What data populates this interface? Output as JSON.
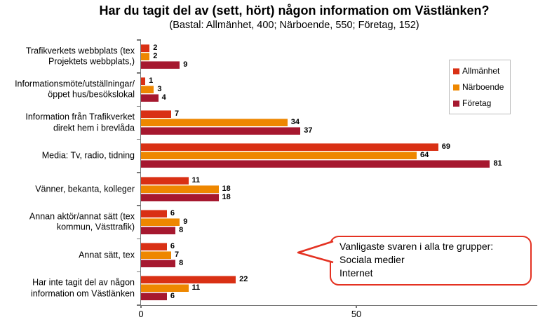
{
  "title": "Har du tagit del av (sett, hört) någon information om Västlänken?",
  "subtitle": "(Bastal: Allmänhet, 400; Närboende, 550; Företag, 152)",
  "colors": {
    "allmanhet": "#D93014",
    "narboende": "#EE8700",
    "foretag": "#A6182F",
    "axis": "#767676",
    "legend_border": "#BDBDBD",
    "callout_border": "#E43222"
  },
  "legend": {
    "items": [
      {
        "label": "Allmänhet",
        "color": "#D93014"
      },
      {
        "label": "Närboende",
        "color": "#EE8700"
      },
      {
        "label": "Företag",
        "color": "#A6182F"
      }
    ]
  },
  "callout": {
    "lines": [
      "Vanligaste svaren i alla tre grupper:",
      "Sociala medier",
      "Internet"
    ]
  },
  "chart_data": {
    "type": "bar",
    "orientation": "horizontal",
    "title": "Har du tagit del av (sett, hört) någon information om Västlänken?",
    "subtitle": "(Bastal: Allmänhet, 400; Närboende, 550; Företag, 152)",
    "categories": [
      {
        "label": "Trafikverkets webbplats (tex Projektets webbplats,)",
        "lines": [
          "Trafikverkets webbplats (tex",
          "Projektets webbplats,)"
        ]
      },
      {
        "label": "Informationsmöte/utställningar/öppet hus/besökslokal",
        "lines": [
          "Informationsmöte/utställningar/",
          "öppet hus/besökslokal"
        ]
      },
      {
        "label": "Information från Trafikverket direkt hem i brevlåda",
        "lines": [
          "Information från Trafikverket",
          "direkt hem i brevlåda"
        ]
      },
      {
        "label": "Media: Tv, radio, tidning",
        "lines": [
          "Media: Tv, radio, tidning"
        ]
      },
      {
        "label": "Vänner, bekanta, kolleger",
        "lines": [
          "Vänner, bekanta, kolleger"
        ]
      },
      {
        "label": "Annan aktör/annat sätt (tex kommun, Västtrafik)",
        "lines": [
          "Annan aktör/annat sätt (tex",
          "kommun, Västtrafik)"
        ]
      },
      {
        "label": "Annat sätt, tex",
        "lines": [
          "Annat sätt, tex"
        ]
      },
      {
        "label": "Har inte tagit del av någon information om Västlänken",
        "lines": [
          "Har inte tagit del av någon",
          "information om Västlänken"
        ]
      }
    ],
    "series": [
      {
        "name": "Allmänhet",
        "key": "allmanhet",
        "color": "#D93014",
        "values": [
          2,
          1,
          7,
          69,
          11,
          6,
          6,
          22
        ]
      },
      {
        "name": "Närboende",
        "key": "narboende",
        "color": "#EE8700",
        "values": [
          2,
          3,
          34,
          64,
          18,
          9,
          7,
          11
        ]
      },
      {
        "name": "Företag",
        "key": "foretag",
        "color": "#A6182F",
        "values": [
          9,
          4,
          37,
          81,
          18,
          8,
          8,
          6
        ]
      }
    ],
    "xlim": [
      0,
      92
    ],
    "x_ticks": [
      0,
      50
    ],
    "grid": false,
    "value_labels": true,
    "legend_position": "upper-right"
  }
}
